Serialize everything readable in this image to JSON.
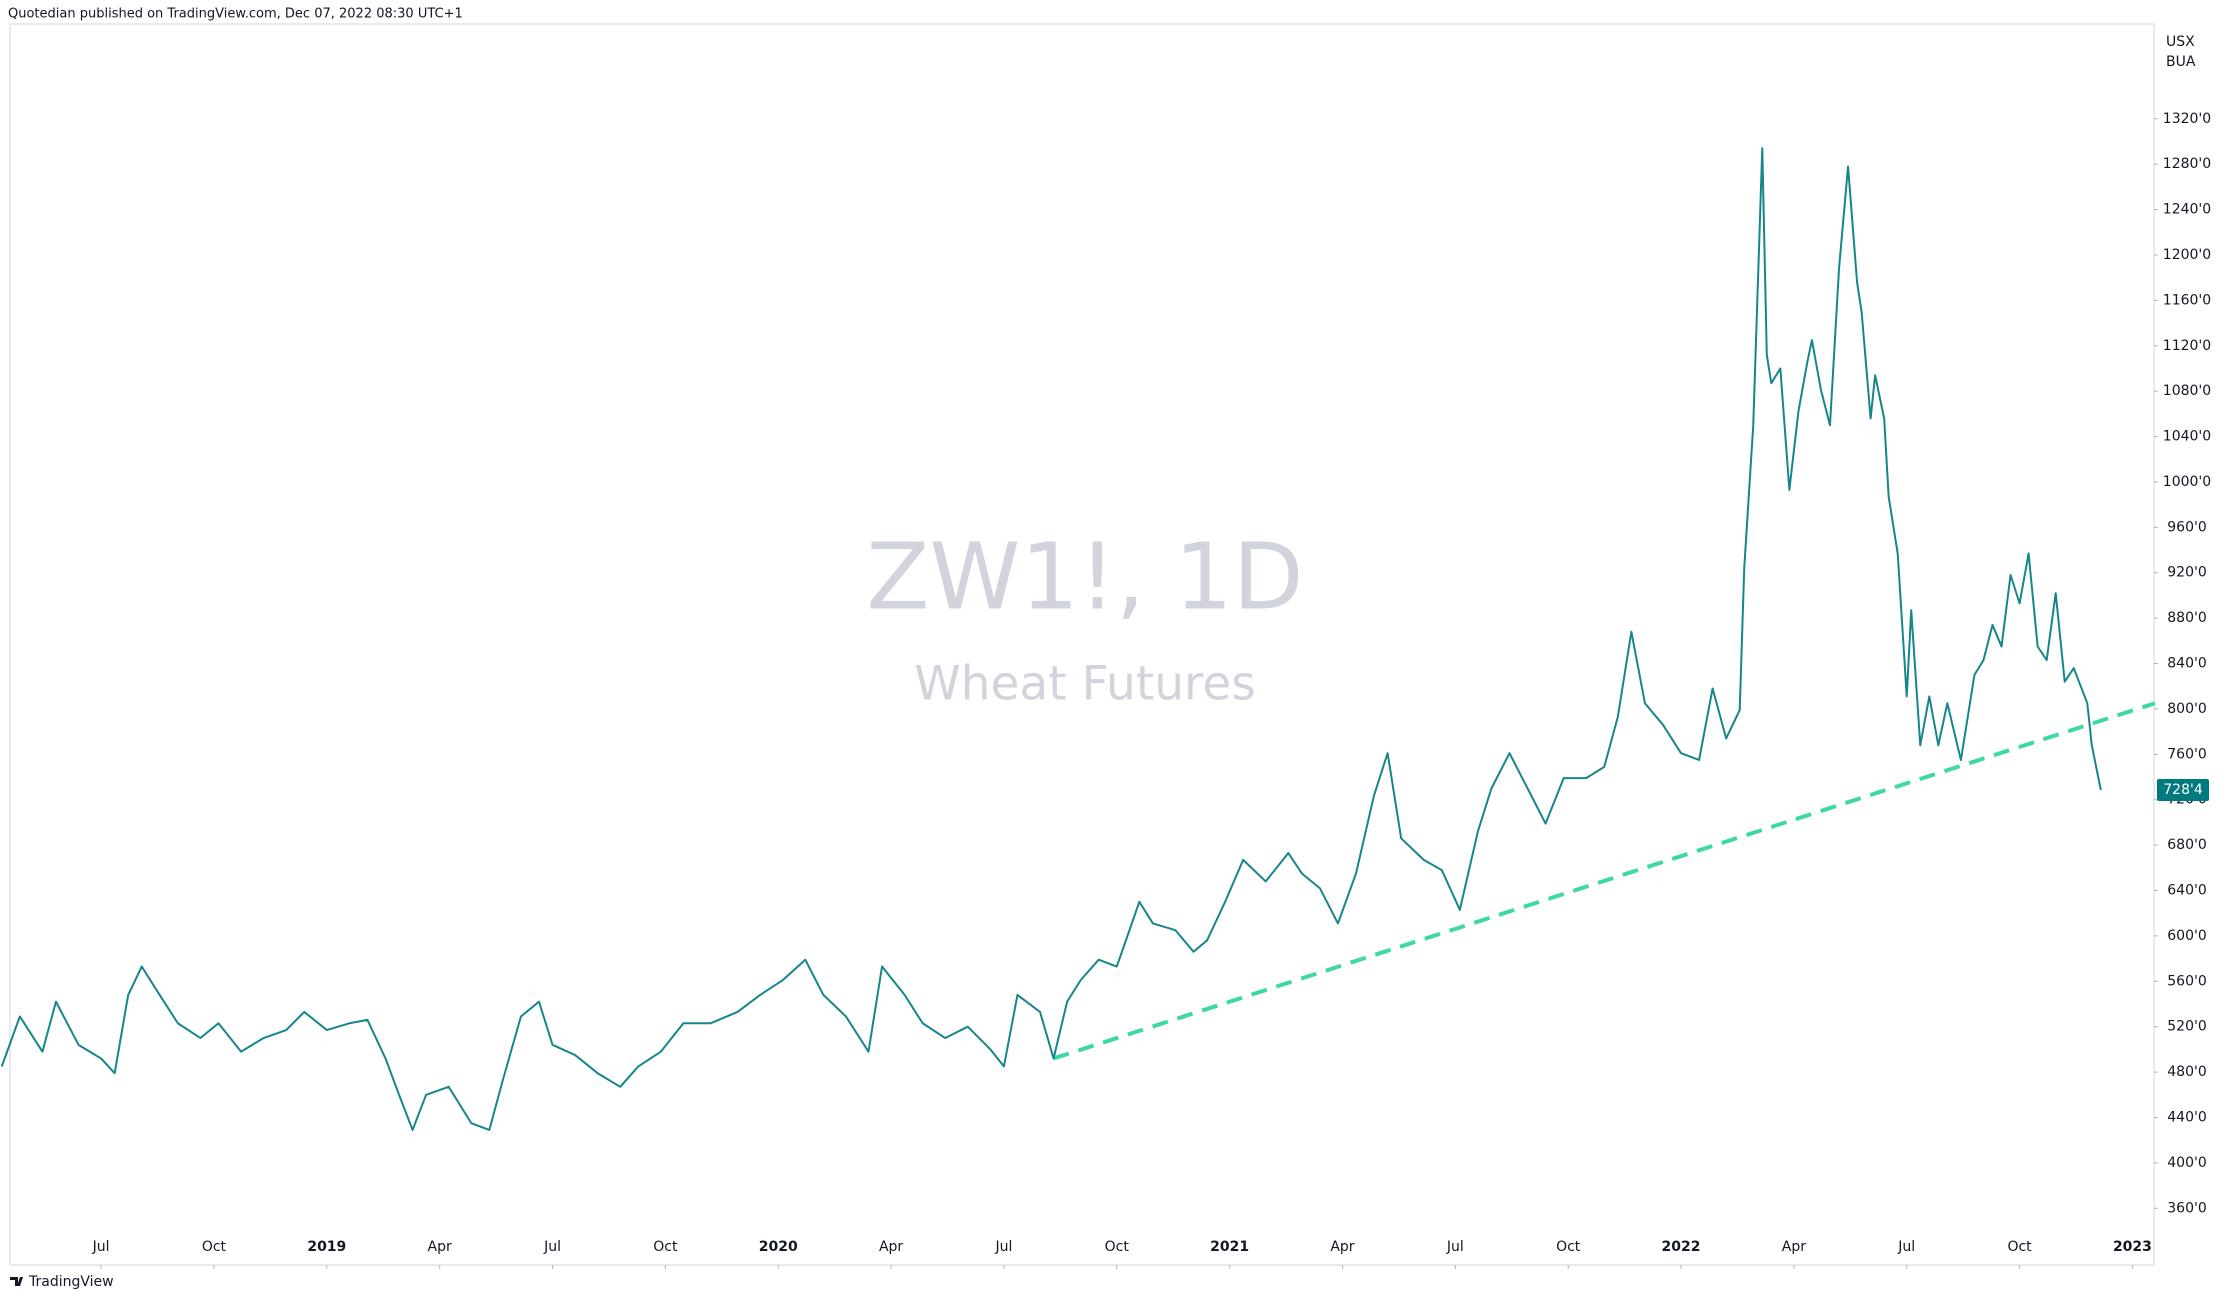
{
  "header": {
    "text": "Quotedian published on TradingView.com, Dec 07, 2022 08:30 UTC+1"
  },
  "footer": {
    "brand": "TradingView"
  },
  "chart_data": {
    "type": "line",
    "title": "ZW1!, 1D",
    "subtitle": "Wheat Futures",
    "units": [
      "USX",
      "BUA"
    ],
    "color": "#16868a",
    "grid": false,
    "x": [
      2018.28,
      2018.32,
      2018.37,
      2018.4,
      2018.45,
      2018.5,
      2018.53,
      2018.56,
      2018.59,
      2018.62,
      2018.67,
      2018.72,
      2018.76,
      2018.81,
      2018.86,
      2018.91,
      2018.95,
      2019.0,
      2019.05,
      2019.09,
      2019.13,
      2019.16,
      2019.19,
      2019.22,
      2019.27,
      2019.32,
      2019.36,
      2019.39,
      2019.43,
      2019.47,
      2019.5,
      2019.55,
      2019.6,
      2019.65,
      2019.69,
      2019.74,
      2019.79,
      2019.85,
      2019.91,
      2019.96,
      2020.01,
      2020.06,
      2020.1,
      2020.15,
      2020.2,
      2020.23,
      2020.28,
      2020.32,
      2020.37,
      2020.42,
      2020.47,
      2020.5,
      2020.53,
      2020.58,
      2020.61,
      2020.64,
      2020.67,
      2020.71,
      2020.75,
      2020.8,
      2020.83,
      2020.88,
      2020.92,
      2020.95,
      2020.99,
      2021.03,
      2021.08,
      2021.13,
      2021.16,
      2021.2,
      2021.24,
      2021.28,
      2021.32,
      2021.35,
      2021.38,
      2021.43,
      2021.47,
      2021.51,
      2021.55,
      2021.58,
      2021.62,
      2021.66,
      2021.7,
      2021.74,
      2021.79,
      2021.83,
      2021.86,
      2021.89,
      2021.92,
      2021.96,
      2022.0,
      2022.04,
      2022.07,
      2022.1,
      2022.13,
      2022.14,
      2022.16,
      2022.18,
      2022.19,
      2022.2,
      2022.22,
      2022.24,
      2022.26,
      2022.28,
      2022.29,
      2022.31,
      2022.33,
      2022.35,
      2022.37,
      2022.39,
      2022.4,
      2022.42,
      2022.43,
      2022.45,
      2022.46,
      2022.48,
      2022.5,
      2022.51,
      2022.53,
      2022.55,
      2022.57,
      2022.59,
      2022.62,
      2022.65,
      2022.67,
      2022.69,
      2022.71,
      2022.73,
      2022.75,
      2022.77,
      2022.79,
      2022.81,
      2022.83,
      2022.85,
      2022.87,
      2022.9,
      2022.91,
      2022.93
    ],
    "values": [
      485,
      529,
      498,
      542,
      504,
      492,
      479,
      548,
      573,
      554,
      523,
      510,
      523,
      498,
      510,
      517,
      533,
      517,
      523,
      526,
      492,
      460,
      429,
      460,
      467,
      435,
      429,
      473,
      529,
      542,
      504,
      495,
      479,
      467,
      485,
      498,
      523,
      523,
      533,
      548,
      561,
      579,
      548,
      529,
      498,
      573,
      548,
      523,
      510,
      520,
      500,
      485,
      548,
      533,
      492,
      542,
      561,
      579,
      573,
      630,
      611,
      605,
      586,
      596,
      630,
      667,
      648,
      673,
      655,
      642,
      611,
      655,
      724,
      761,
      686,
      667,
      658,
      623,
      692,
      730,
      761,
      730,
      699,
      739,
      739,
      749,
      793,
      868,
      805,
      786,
      761,
      755,
      818,
      774,
      799,
      924,
      1050,
      1294,
      1112,
      1087,
      1100,
      993,
      1062,
      1106,
      1125,
      1081,
      1050,
      1188,
      1278,
      1176,
      1150,
      1056,
      1094,
      1056,
      987,
      937,
      811,
      887,
      768,
      811,
      768,
      805,
      755,
      830,
      843,
      874,
      855,
      918,
      893,
      937,
      855,
      843,
      902,
      824,
      836,
      805,
      768,
      728.5
    ],
    "last_price": {
      "value": 728.5,
      "label": "728'4"
    },
    "trendline": {
      "x": [
        2020.61,
        2023.05
      ],
      "values": [
        492,
        805
      ],
      "color": "#3ed9a0"
    },
    "xlim": [
      2018.276,
      2023.05
    ],
    "xticks": [
      {
        "value": 2018.5,
        "label": "Jul"
      },
      {
        "value": 2018.75,
        "label": "Oct"
      },
      2019,
      {
        "value": 2019.25,
        "label": "Apr"
      },
      {
        "value": 2019.5,
        "label": "Jul"
      },
      {
        "value": 2019.75,
        "label": "Oct"
      },
      2020,
      {
        "value": 2020.25,
        "label": "Apr"
      },
      {
        "value": 2020.5,
        "label": "Jul"
      },
      {
        "value": 2020.75,
        "label": "Oct"
      },
      2021,
      {
        "value": 2021.25,
        "label": "Apr"
      },
      {
        "value": 2021.5,
        "label": "Jul"
      },
      {
        "value": 2021.75,
        "label": "Oct"
      },
      2022,
      {
        "value": 2022.25,
        "label": "Apr"
      },
      {
        "value": 2022.5,
        "label": "Jul"
      },
      {
        "value": 2022.75,
        "label": "Oct"
      },
      2023
    ],
    "ylim": [
      310,
      1400
    ],
    "yticks": [
      {
        "value": 360,
        "label": "360'0"
      },
      {
        "value": 400,
        "label": "400'0"
      },
      {
        "value": 440,
        "label": "440'0"
      },
      {
        "value": 480,
        "label": "480'0"
      },
      {
        "value": 520,
        "label": "520'0"
      },
      {
        "value": 560,
        "label": "560'0"
      },
      {
        "value": 600,
        "label": "600'0"
      },
      {
        "value": 640,
        "label": "640'0"
      },
      {
        "value": 680,
        "label": "680'0"
      },
      {
        "value": 720,
        "label": "720'0"
      },
      {
        "value": 760,
        "label": "760'0"
      },
      {
        "value": 800,
        "label": "800'0"
      },
      {
        "value": 840,
        "label": "840'0"
      },
      {
        "value": 880,
        "label": "880'0"
      },
      {
        "value": 920,
        "label": "920'0"
      },
      {
        "value": 960,
        "label": "960'0"
      },
      {
        "value": 1000,
        "label": "1000'0"
      },
      {
        "value": 1040,
        "label": "1040'0"
      },
      {
        "value": 1080,
        "label": "1080'0"
      },
      {
        "value": 1120,
        "label": "1120'0"
      },
      {
        "value": 1160,
        "label": "1160'0"
      },
      {
        "value": 1200,
        "label": "1200'0"
      },
      {
        "value": 1240,
        "label": "1240'0"
      },
      {
        "value": 1280,
        "label": "1280'0"
      },
      {
        "value": 1320,
        "label": "1320'0"
      }
    ]
  }
}
